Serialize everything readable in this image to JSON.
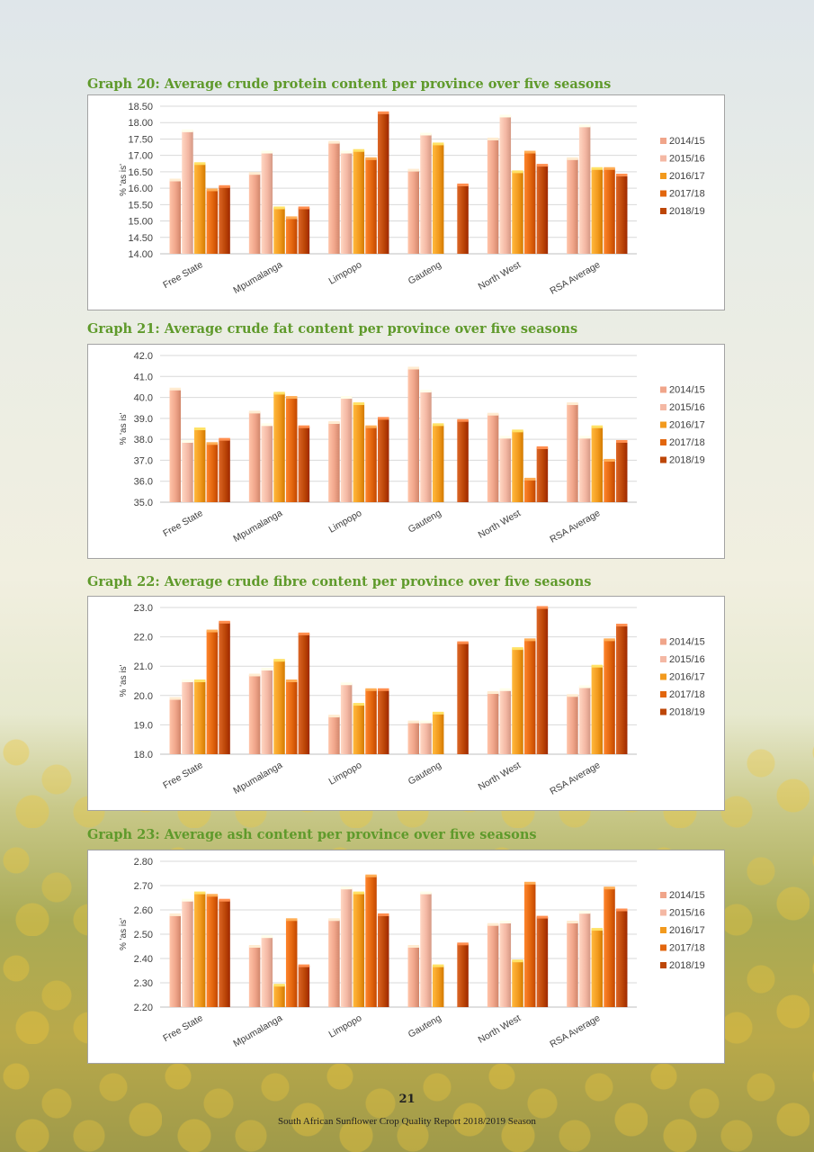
{
  "footer": {
    "page_number": "21",
    "report_title": "South African Sunflower Crop Quality Report 2018/2019 Season"
  },
  "colors": {
    "2014/15": "#f0a58a",
    "2015/16": "#f4b8a4",
    "2016/17": "#f29a1e",
    "2017/18": "#e2660e",
    "2018/19": "#bd4708"
  },
  "chart_data": [
    {
      "type": "bar",
      "title": "Graph 20:  Average crude protein content per province over five seasons",
      "ylabel": "% 'as is'",
      "ylim": [
        14.0,
        18.5
      ],
      "yticks": [
        "14.00",
        "14.50",
        "15.00",
        "15.50",
        "16.00",
        "16.50",
        "17.00",
        "17.50",
        "18.00",
        "18.50"
      ],
      "categories": [
        "Free State",
        "Mpumalanga",
        "Limpopo",
        "Gauteng",
        "North West",
        "RSA Average"
      ],
      "series": [
        {
          "name": "2014/15",
          "values": [
            16.25,
            16.45,
            17.4,
            16.55,
            17.5,
            16.9
          ]
        },
        {
          "name": "2015/16",
          "values": [
            17.75,
            17.1,
            17.1,
            17.65,
            18.2,
            17.9
          ]
        },
        {
          "name": "2016/17",
          "values": [
            16.75,
            15.4,
            17.15,
            17.35,
            16.5,
            16.6
          ]
        },
        {
          "name": "2017/18",
          "values": [
            15.95,
            15.1,
            16.9,
            null,
            17.1,
            16.6
          ]
        },
        {
          "name": "2018/19",
          "values": [
            16.05,
            15.4,
            18.3,
            16.1,
            16.7,
            16.4
          ]
        }
      ],
      "grid": true,
      "legend": "right"
    },
    {
      "type": "bar",
      "title": "Graph 21:  Average crude fat content per province over five seasons",
      "ylabel": "% 'as is'",
      "ylim": [
        35.0,
        42.0
      ],
      "yticks": [
        "35.0",
        "36.0",
        "37.0",
        "38.0",
        "39.0",
        "40.0",
        "41.0",
        "42.0"
      ],
      "categories": [
        "Free State",
        "Mpumalanga",
        "Limpopo",
        "Gauteng",
        "North West",
        "RSA Average"
      ],
      "series": [
        {
          "name": "2014/15",
          "values": [
            40.4,
            39.3,
            38.8,
            41.4,
            39.2,
            39.7
          ]
        },
        {
          "name": "2015/16",
          "values": [
            37.9,
            38.7,
            40.0,
            40.3,
            38.1,
            38.1
          ]
        },
        {
          "name": "2016/17",
          "values": [
            38.5,
            40.2,
            39.7,
            38.7,
            38.4,
            38.6
          ]
        },
        {
          "name": "2017/18",
          "values": [
            37.8,
            40.0,
            38.6,
            null,
            36.1,
            37.0
          ]
        },
        {
          "name": "2018/19",
          "values": [
            38.0,
            38.6,
            39.0,
            38.9,
            37.6,
            37.9
          ]
        }
      ],
      "grid": true,
      "legend": "right"
    },
    {
      "type": "bar",
      "title": "Graph 22:  Average crude fibre content per province over five seasons",
      "ylabel": "% 'as is'",
      "ylim": [
        18.0,
        23.0
      ],
      "yticks": [
        "18.0",
        "19.0",
        "20.0",
        "21.0",
        "22.0",
        "23.0"
      ],
      "categories": [
        "Free State",
        "Mpumalanga",
        "Limpopo",
        "Gauteng",
        "North West",
        "RSA Average"
      ],
      "series": [
        {
          "name": "2014/15",
          "values": [
            19.9,
            20.7,
            19.3,
            19.1,
            20.1,
            20.0
          ]
        },
        {
          "name": "2015/16",
          "values": [
            20.5,
            20.9,
            20.4,
            19.1,
            20.2,
            20.3
          ]
        },
        {
          "name": "2016/17",
          "values": [
            20.5,
            21.2,
            19.7,
            19.4,
            21.6,
            21.0
          ]
        },
        {
          "name": "2017/18",
          "values": [
            22.2,
            20.5,
            20.2,
            null,
            21.9,
            21.9
          ]
        },
        {
          "name": "2018/19",
          "values": [
            22.5,
            22.1,
            20.2,
            21.8,
            23.0,
            22.4
          ]
        }
      ],
      "grid": true,
      "legend": "right"
    },
    {
      "type": "bar",
      "title": "Graph 23:  Average ash content per province over five seasons",
      "ylabel": "% 'as is'",
      "ylim": [
        2.2,
        2.8
      ],
      "yticks": [
        "2.20",
        "2.30",
        "2.40",
        "2.50",
        "2.60",
        "2.70",
        "2.80"
      ],
      "categories": [
        "Free State",
        "Mpumalanga",
        "Limpopo",
        "Gauteng",
        "North West",
        "RSA Average"
      ],
      "series": [
        {
          "name": "2014/15",
          "values": [
            2.58,
            2.45,
            2.56,
            2.45,
            2.54,
            2.55
          ]
        },
        {
          "name": "2015/16",
          "values": [
            2.64,
            2.49,
            2.69,
            2.67,
            2.55,
            2.59
          ]
        },
        {
          "name": "2016/17",
          "values": [
            2.67,
            2.29,
            2.67,
            2.37,
            2.39,
            2.52
          ]
        },
        {
          "name": "2017/18",
          "values": [
            2.66,
            2.56,
            2.74,
            null,
            2.71,
            2.69
          ]
        },
        {
          "name": "2018/19",
          "values": [
            2.64,
            2.37,
            2.58,
            2.46,
            2.57,
            2.6
          ]
        }
      ],
      "grid": true,
      "legend": "right"
    }
  ]
}
